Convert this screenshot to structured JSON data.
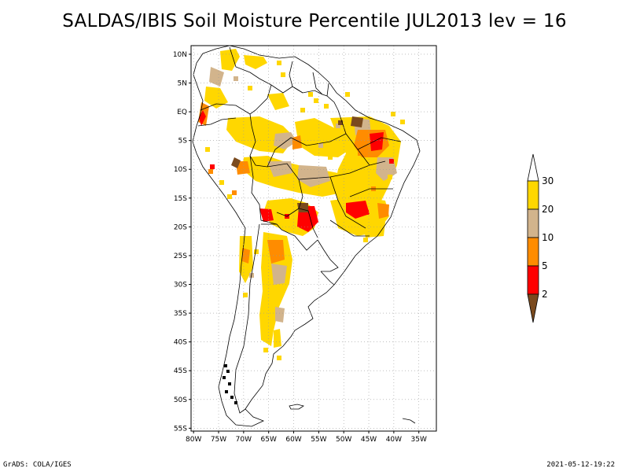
{
  "title": "SALDAS/IBIS Soil Moisture Percentile JUL2013 lev = 16",
  "footer_left": "GrADS: COLA/IGES",
  "footer_right": "2021-05-12-19:22",
  "map": {
    "lon_range": [
      -80.5,
      -31.5
    ],
    "lat_range": [
      -55.5,
      11.5
    ],
    "lat_ticks": [
      {
        "v": 10,
        "label": "10N"
      },
      {
        "v": 5,
        "label": "5N"
      },
      {
        "v": 0,
        "label": "EQ"
      },
      {
        "v": -5,
        "label": "5S"
      },
      {
        "v": -10,
        "label": "10S"
      },
      {
        "v": -15,
        "label": "15S"
      },
      {
        "v": -20,
        "label": "20S"
      },
      {
        "v": -25,
        "label": "25S"
      },
      {
        "v": -30,
        "label": "30S"
      },
      {
        "v": -35,
        "label": "35S"
      },
      {
        "v": -40,
        "label": "40S"
      },
      {
        "v": -45,
        "label": "45S"
      },
      {
        "v": -50,
        "label": "50S"
      },
      {
        "v": -55,
        "label": "55S"
      }
    ],
    "lon_ticks": [
      {
        "v": -80,
        "label": "80W"
      },
      {
        "v": -75,
        "label": "75W"
      },
      {
        "v": -70,
        "label": "70W"
      },
      {
        "v": -65,
        "label": "65W"
      },
      {
        "v": -60,
        "label": "60W"
      },
      {
        "v": -55,
        "label": "55W"
      },
      {
        "v": -50,
        "label": "50W"
      },
      {
        "v": -45,
        "label": "45W"
      },
      {
        "v": -40,
        "label": "40W"
      },
      {
        "v": -35,
        "label": "35W"
      }
    ],
    "classes": [
      {
        "range": "<2",
        "color": "#7a4a1e"
      },
      {
        "range": "2-5",
        "color": "#ff0000"
      },
      {
        "range": "5-10",
        "color": "#ff8c00"
      },
      {
        "range": "10-20",
        "color": "#d2b48c"
      },
      {
        "range": "20-30",
        "color": "#ffd700"
      }
    ],
    "colorbar": {
      "labels": [
        "2",
        "5",
        "10",
        "20",
        "30"
      ],
      "colors": [
        "#7a4a1e",
        "#ff0000",
        "#ff8c00",
        "#d2b48c",
        "#ffd700",
        "#ffffff"
      ]
    }
  }
}
